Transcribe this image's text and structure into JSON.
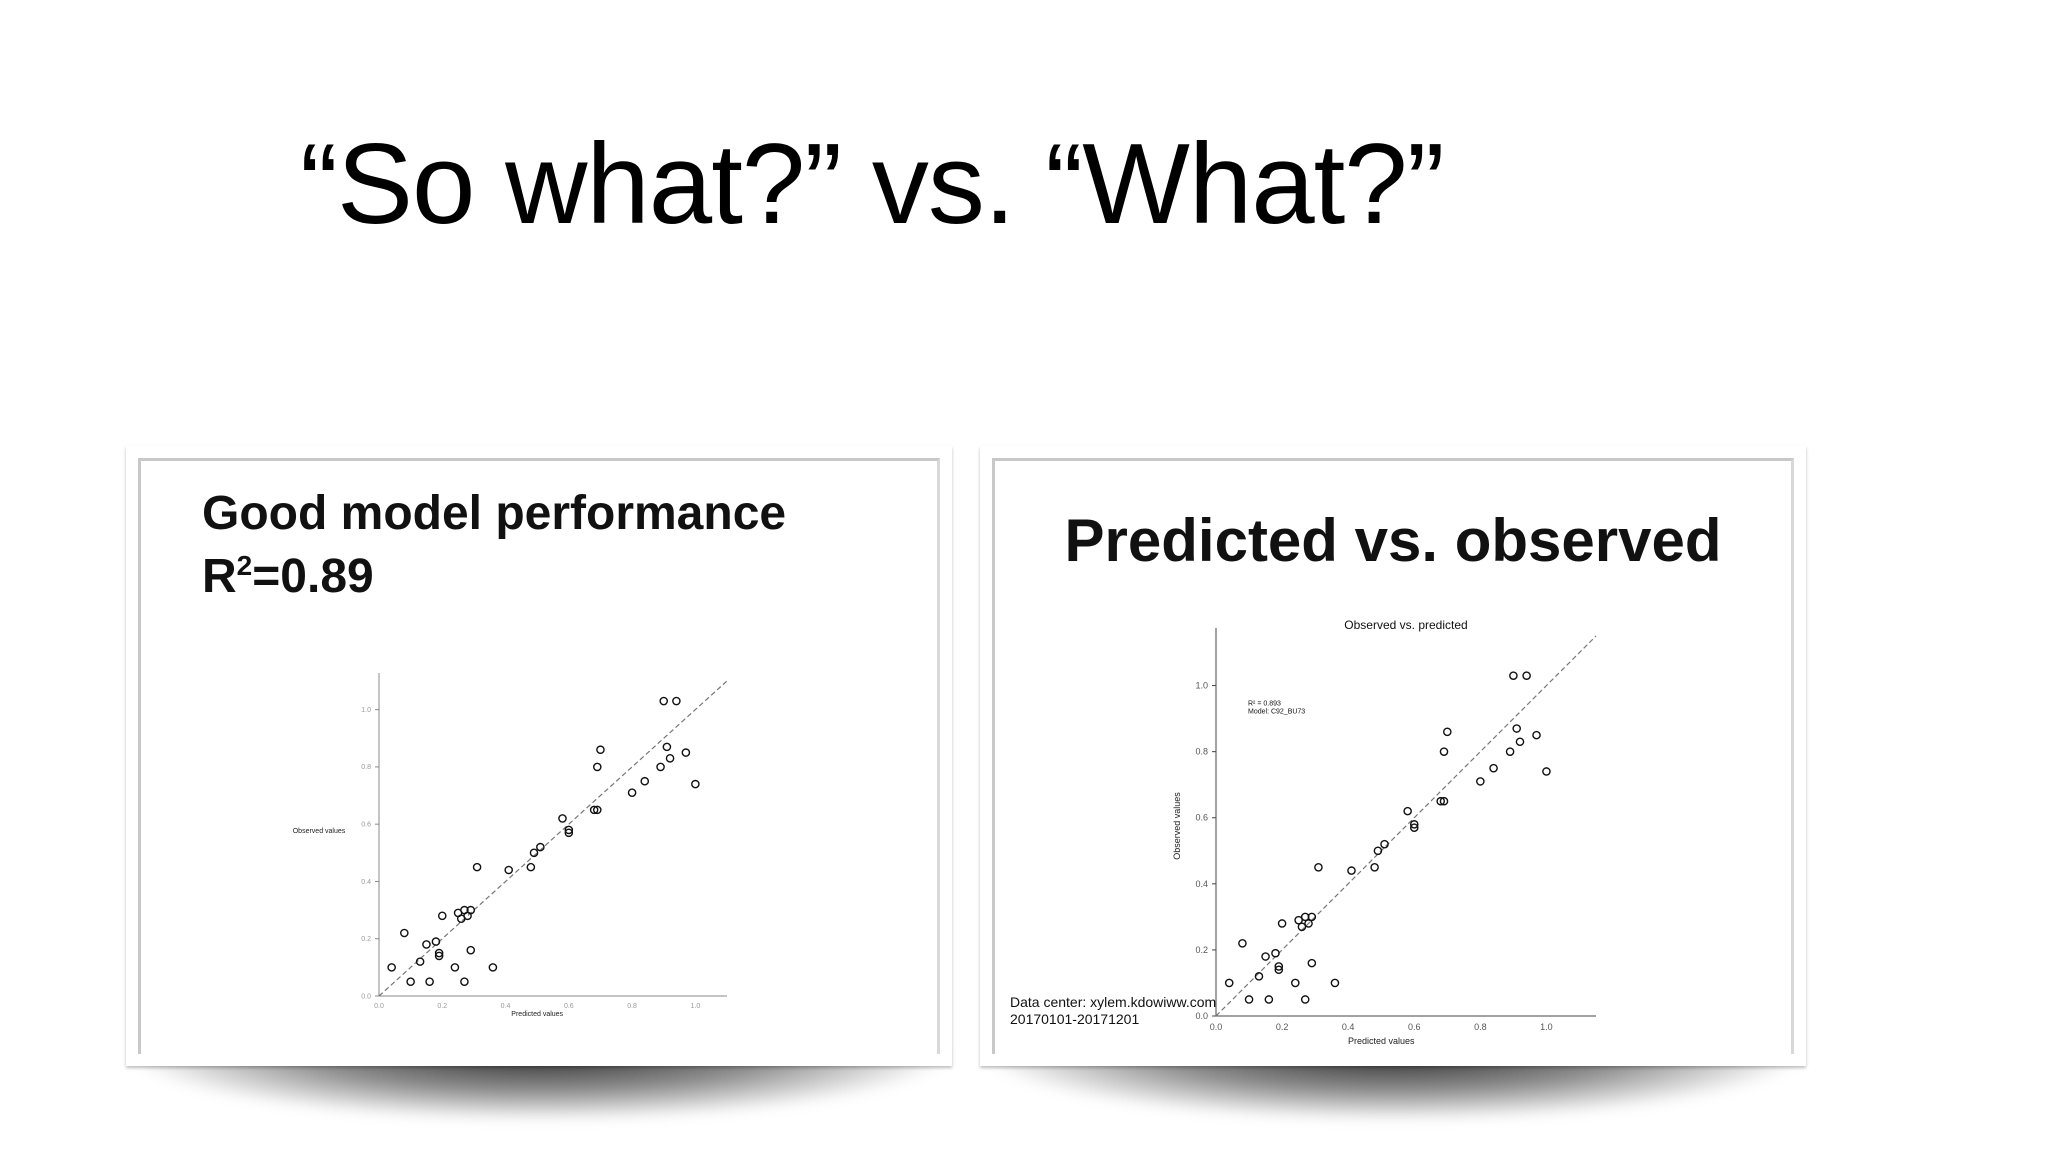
{
  "slide": {
    "title": "“So what?” vs. “What?”"
  },
  "left_panel": {
    "heading_line1": "Good model performance",
    "heading_r": "R",
    "heading_sup": "2",
    "heading_value": "=0.89"
  },
  "right_panel": {
    "heading": "Predicted vs. observed",
    "data_center_line1": "Data center: xylem.kdowiww.com",
    "data_center_line2": "20170101-20171201"
  },
  "chart_data": [
    {
      "type": "scatter",
      "title": "",
      "xlabel": "Predicted values",
      "ylabel": "Observed values",
      "xlim": [
        0.0,
        1.1
      ],
      "ylim": [
        0.0,
        1.1
      ],
      "xticks": [
        "0.0",
        "0.2",
        "0.4",
        "0.6",
        "0.8",
        "1.0"
      ],
      "yticks": [
        "0.0",
        "0.2",
        "0.4",
        "0.6",
        "0.8",
        "1.0"
      ],
      "reference_line": "y = x (dashed)",
      "points": [
        [
          0.04,
          0.1
        ],
        [
          0.08,
          0.22
        ],
        [
          0.1,
          0.05
        ],
        [
          0.13,
          0.12
        ],
        [
          0.15,
          0.18
        ],
        [
          0.16,
          0.05
        ],
        [
          0.18,
          0.19
        ],
        [
          0.19,
          0.15
        ],
        [
          0.19,
          0.14
        ],
        [
          0.2,
          0.28
        ],
        [
          0.24,
          0.1
        ],
        [
          0.25,
          0.29
        ],
        [
          0.26,
          0.27
        ],
        [
          0.27,
          0.05
        ],
        [
          0.27,
          0.3
        ],
        [
          0.28,
          0.28
        ],
        [
          0.29,
          0.3
        ],
        [
          0.29,
          0.16
        ],
        [
          0.31,
          0.45
        ],
        [
          0.36,
          0.1
        ],
        [
          0.41,
          0.44
        ],
        [
          0.48,
          0.45
        ],
        [
          0.49,
          0.5
        ],
        [
          0.51,
          0.52
        ],
        [
          0.58,
          0.62
        ],
        [
          0.6,
          0.57
        ],
        [
          0.6,
          0.58
        ],
        [
          0.68,
          0.65
        ],
        [
          0.69,
          0.65
        ],
        [
          0.69,
          0.8
        ],
        [
          0.7,
          0.86
        ],
        [
          0.8,
          0.71
        ],
        [
          0.84,
          0.75
        ],
        [
          0.89,
          0.8
        ],
        [
          0.9,
          1.03
        ],
        [
          0.91,
          0.87
        ],
        [
          0.92,
          0.83
        ],
        [
          0.94,
          1.03
        ],
        [
          0.97,
          0.85
        ],
        [
          1.0,
          0.74
        ]
      ]
    },
    {
      "type": "scatter",
      "title": "Observed vs. predicted",
      "xlabel": "Predicted values",
      "ylabel": "Observed values",
      "xlim": [
        0.0,
        1.15
      ],
      "ylim": [
        0.0,
        1.15
      ],
      "xticks": [
        "0.0",
        "0.2",
        "0.4",
        "0.6",
        "0.8",
        "1.0"
      ],
      "yticks": [
        "0.0",
        "0.2",
        "0.4",
        "0.6",
        "0.8",
        "1.0"
      ],
      "annotation_line1": "R² = 0.893",
      "annotation_line2": "Model: C92_BU73",
      "reference_line": "y = x (dashed)",
      "points": [
        [
          0.04,
          0.1
        ],
        [
          0.08,
          0.22
        ],
        [
          0.1,
          0.05
        ],
        [
          0.13,
          0.12
        ],
        [
          0.15,
          0.18
        ],
        [
          0.16,
          0.05
        ],
        [
          0.18,
          0.19
        ],
        [
          0.19,
          0.15
        ],
        [
          0.19,
          0.14
        ],
        [
          0.2,
          0.28
        ],
        [
          0.24,
          0.1
        ],
        [
          0.25,
          0.29
        ],
        [
          0.26,
          0.27
        ],
        [
          0.27,
          0.05
        ],
        [
          0.27,
          0.3
        ],
        [
          0.28,
          0.28
        ],
        [
          0.29,
          0.3
        ],
        [
          0.29,
          0.16
        ],
        [
          0.31,
          0.45
        ],
        [
          0.36,
          0.1
        ],
        [
          0.41,
          0.44
        ],
        [
          0.48,
          0.45
        ],
        [
          0.49,
          0.5
        ],
        [
          0.51,
          0.52
        ],
        [
          0.58,
          0.62
        ],
        [
          0.6,
          0.57
        ],
        [
          0.6,
          0.58
        ],
        [
          0.68,
          0.65
        ],
        [
          0.69,
          0.65
        ],
        [
          0.69,
          0.8
        ],
        [
          0.7,
          0.86
        ],
        [
          0.8,
          0.71
        ],
        [
          0.84,
          0.75
        ],
        [
          0.89,
          0.8
        ],
        [
          0.9,
          1.03
        ],
        [
          0.91,
          0.87
        ],
        [
          0.92,
          0.83
        ],
        [
          0.94,
          1.03
        ],
        [
          0.97,
          0.85
        ],
        [
          1.0,
          0.74
        ]
      ]
    }
  ]
}
